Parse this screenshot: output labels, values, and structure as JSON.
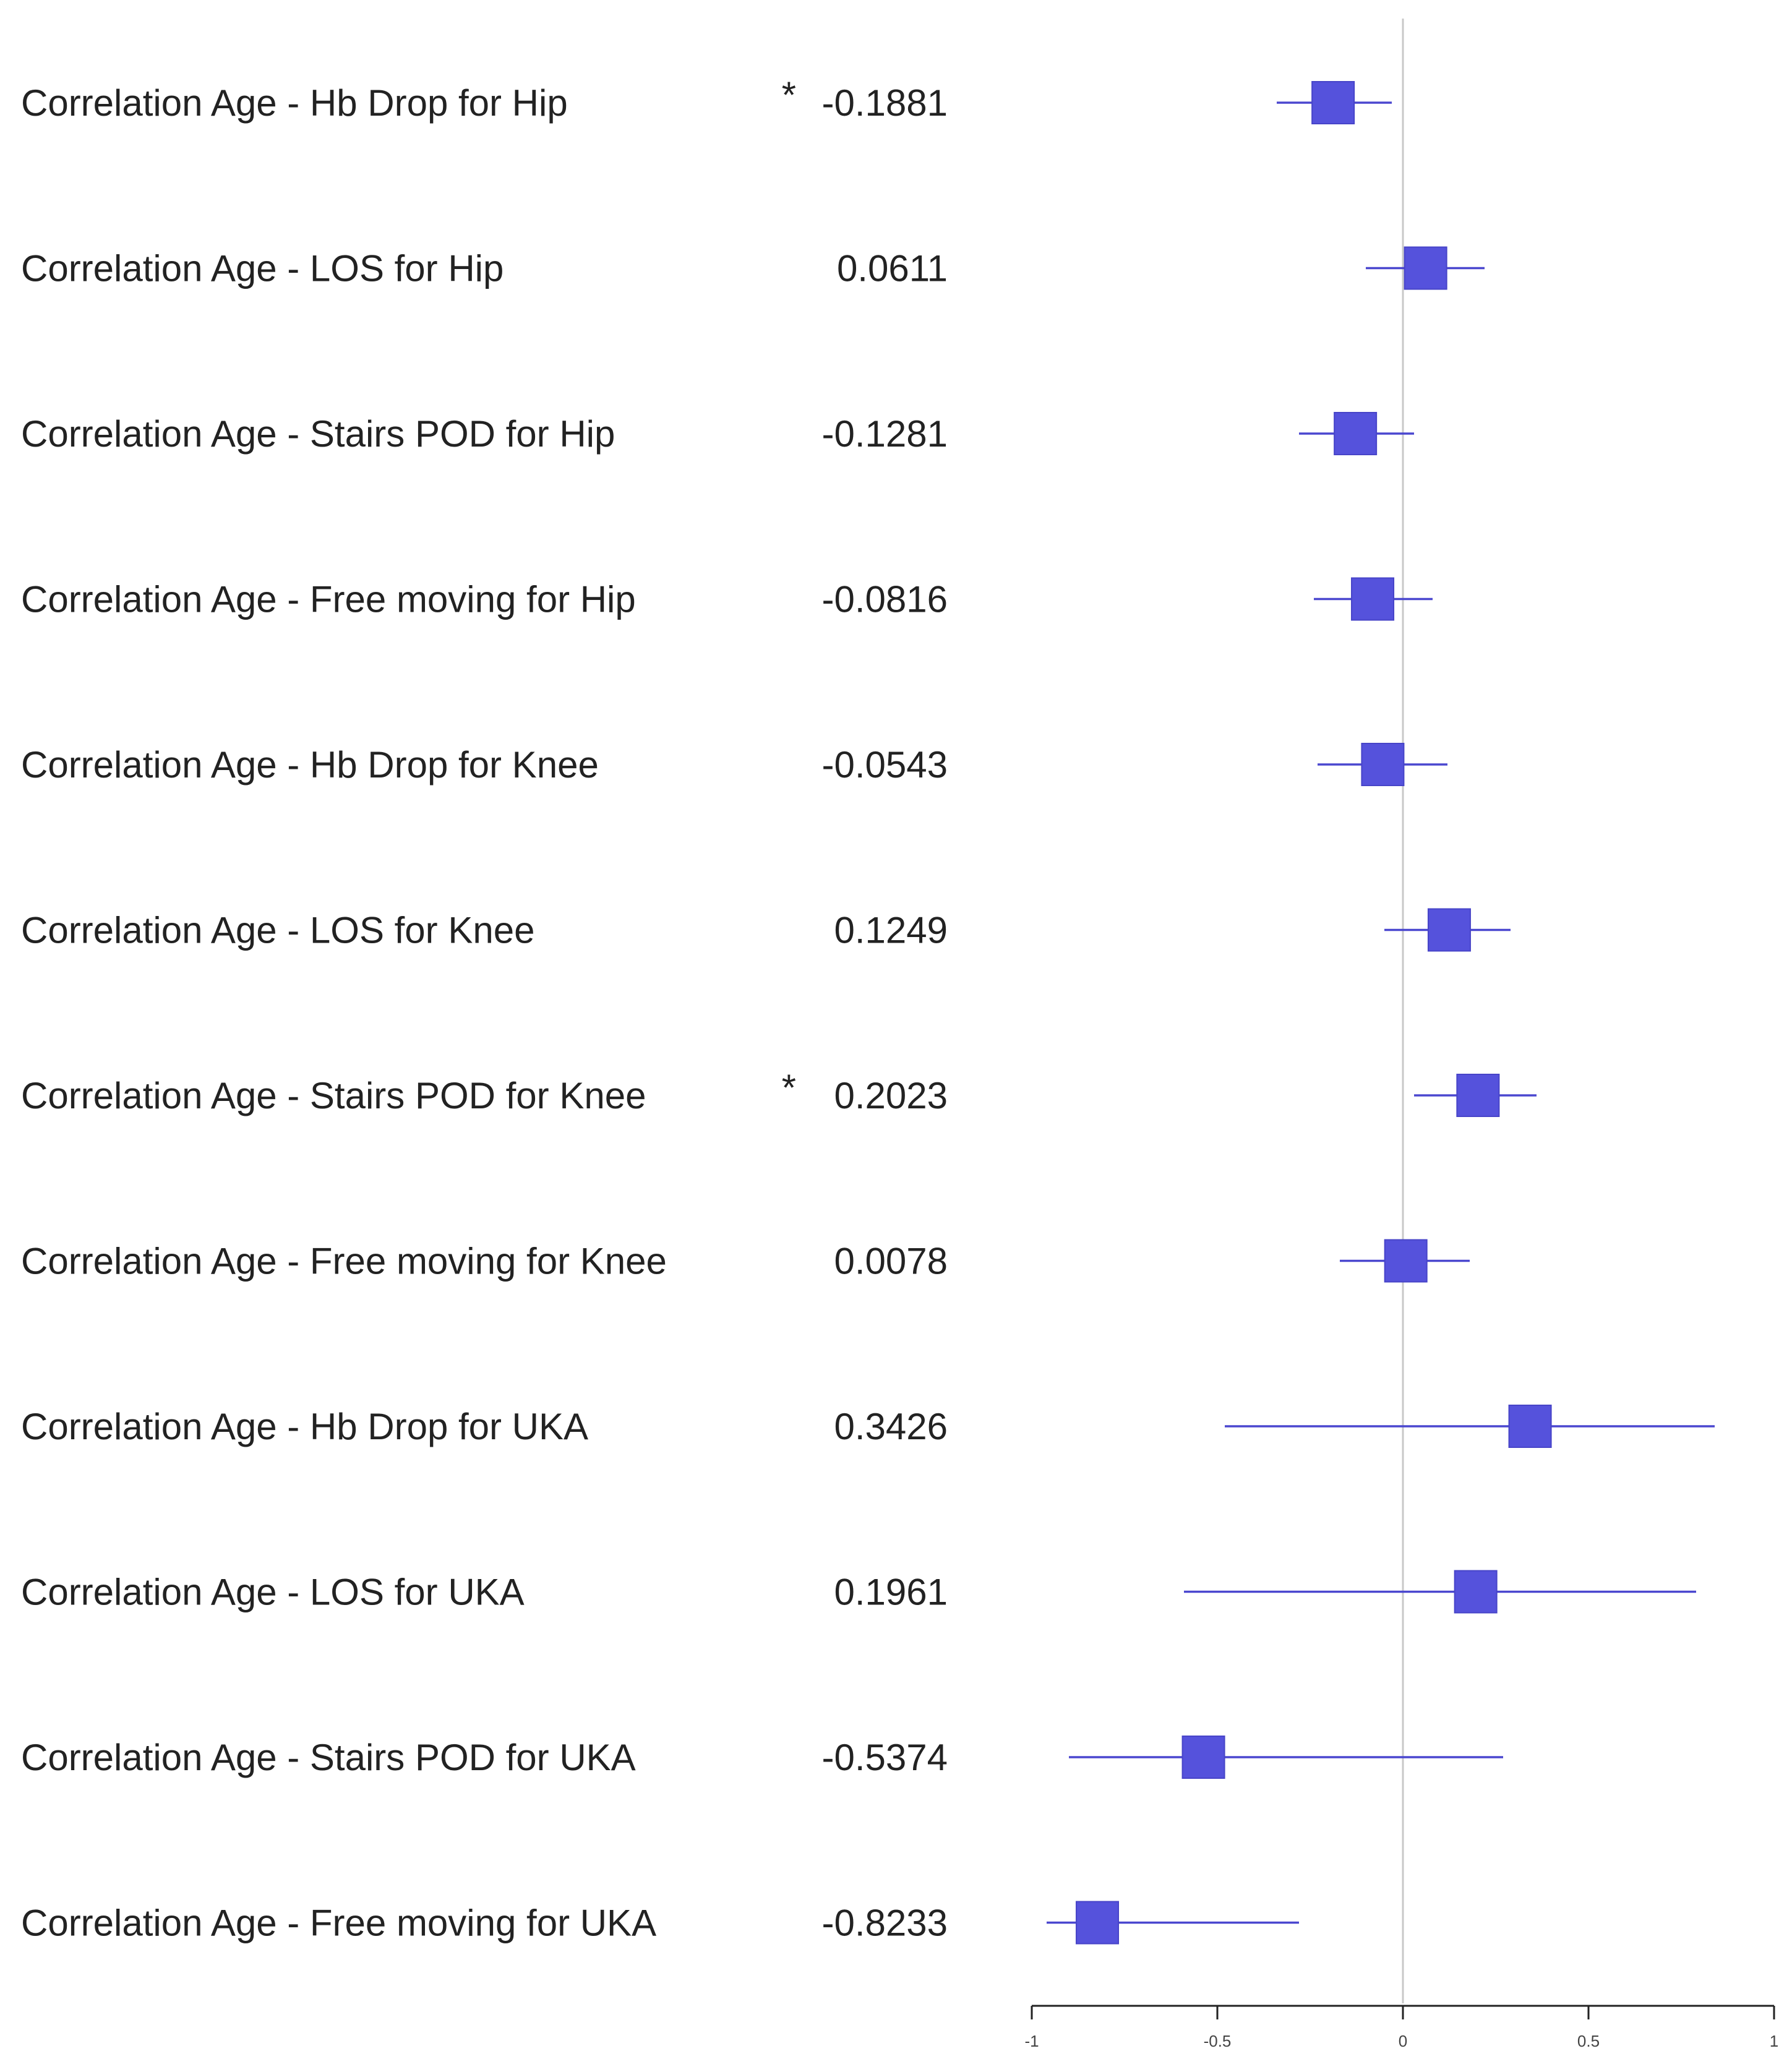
{
  "chart_data": {
    "type": "forest",
    "rows": [
      {
        "label": "Correlation Age - Hb Drop for Hip",
        "marker": "*",
        "value": -0.1881,
        "value_text": "-0.1881",
        "ci": [
          -0.34,
          -0.03
        ]
      },
      {
        "label": "Correlation Age - LOS for Hip",
        "marker": "",
        "value": 0.0611,
        "value_text": "0.0611",
        "ci": [
          -0.1,
          0.22
        ]
      },
      {
        "label": "Correlation Age - Stairs POD for Hip",
        "marker": "",
        "value": -0.1281,
        "value_text": "-0.1281",
        "ci": [
          -0.28,
          0.03
        ]
      },
      {
        "label": "Correlation Age - Free moving for Hip",
        "marker": "",
        "value": -0.0816,
        "value_text": "-0.0816",
        "ci": [
          -0.24,
          0.08
        ]
      },
      {
        "label": "Correlation Age - Hb Drop for Knee",
        "marker": "",
        "value": -0.0543,
        "value_text": "-0.0543",
        "ci": [
          -0.23,
          0.12
        ]
      },
      {
        "label": "Correlation Age - LOS for Knee",
        "marker": "",
        "value": 0.1249,
        "value_text": "0.1249",
        "ci": [
          -0.05,
          0.29
        ]
      },
      {
        "label": "Correlation Age - Stairs POD for Knee",
        "marker": "*",
        "value": 0.2023,
        "value_text": "0.2023",
        "ci": [
          0.03,
          0.36
        ]
      },
      {
        "label": "Correlation Age - Free moving for Knee",
        "marker": "",
        "value": 0.0078,
        "value_text": "0.0078",
        "ci": [
          -0.17,
          0.18
        ]
      },
      {
        "label": "Correlation Age - Hb Drop for UKA",
        "marker": "",
        "value": 0.3426,
        "value_text": "0.3426",
        "ci": [
          -0.48,
          0.84
        ]
      },
      {
        "label": "Correlation Age - LOS for UKA",
        "marker": "",
        "value": 0.1961,
        "value_text": "0.1961",
        "ci": [
          -0.59,
          0.79
        ]
      },
      {
        "label": "Correlation Age - Stairs POD for UKA",
        "marker": "",
        "value": -0.5374,
        "value_text": "-0.5374",
        "ci": [
          -0.9,
          0.27
        ]
      },
      {
        "label": "Correlation Age - Free moving for UKA",
        "marker": "",
        "value": -0.8233,
        "value_text": "-0.8233",
        "ci": [
          -0.96,
          -0.28
        ]
      }
    ],
    "xlim": [
      -1,
      1
    ],
    "xticks": [
      -1,
      -0.5,
      0,
      0.5,
      1
    ],
    "xtick_labels": [
      "-1",
      "-0.5",
      "0",
      "0.5",
      "1"
    ],
    "reference_line": 0,
    "grid": false,
    "colors": {
      "marker": "#5552dc",
      "marker_edge": "#4744c8",
      "ci_line": "#4a47cf",
      "reference_line": "#c8c8c8",
      "axis": "#222222",
      "text": "#222222"
    }
  }
}
